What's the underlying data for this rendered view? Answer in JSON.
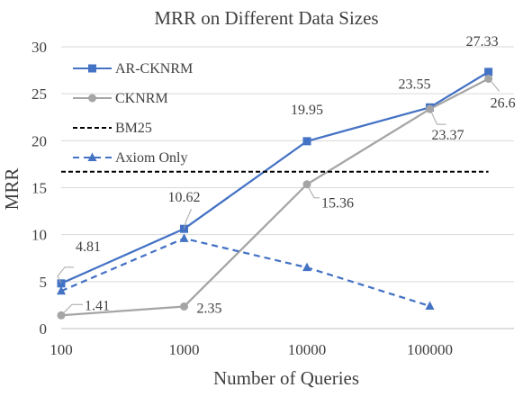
{
  "chart_data": {
    "type": "line",
    "title": "MRR on Different Data Sizes",
    "xlabel": "Number of Queries",
    "ylabel": "MRR",
    "categories": [
      "100",
      "1000",
      "10000",
      "100000"
    ],
    "x_scale": "log",
    "ylim": [
      0,
      30
    ],
    "yticks": [
      "0",
      "5",
      "10",
      "15",
      "20",
      "25",
      "30"
    ],
    "grid": "horizontal",
    "legend": "top-left",
    "series": [
      {
        "name": "AR-CKNRM",
        "color": "#4472c4",
        "line": "solid",
        "marker": "square",
        "x": [
          100,
          1000,
          10000,
          100000,
          300000
        ],
        "values": [
          4.81,
          10.62,
          19.95,
          23.55,
          27.33
        ],
        "labels": [
          "4.81",
          "10.62",
          "19.95",
          "23.55",
          "27.33"
        ]
      },
      {
        "name": "CKNRM",
        "color": "#a5a5a5",
        "line": "solid",
        "marker": "circle",
        "x": [
          100,
          1000,
          10000,
          100000,
          300000
        ],
        "values": [
          1.41,
          2.35,
          15.36,
          23.37,
          26.6
        ],
        "labels": [
          "1.41",
          "2.35",
          "15.36",
          "23.37",
          "26.6"
        ]
      },
      {
        "name": "BM25",
        "color": "#000000",
        "line": "dashed",
        "marker": "none",
        "x": [
          100,
          300000
        ],
        "values": [
          16.7,
          16.7
        ]
      },
      {
        "name": "Axiom Only",
        "color": "#4472c4",
        "line": "dashed",
        "marker": "triangle",
        "x": [
          100,
          1000,
          10000,
          100000
        ],
        "values": [
          4.0,
          9.6,
          6.5,
          2.4
        ]
      }
    ]
  }
}
